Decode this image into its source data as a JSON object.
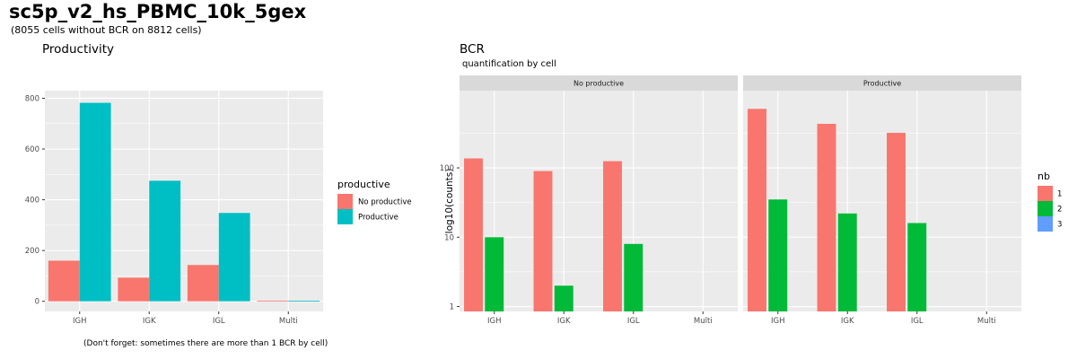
{
  "title": "sc5p_v2_hs_PBMC_10k_5gex",
  "subtitle": "(8055 cells without BCR on 8812 cells)",
  "colors": {
    "panel_bg": "#EBEBEB",
    "grid": "#FFFFFF",
    "strip_bg": "#D9D9D9",
    "text_dark": "#4D4D4D",
    "no_productive": "#F8766D",
    "productive": "#00BFC4",
    "nb1": "#F8766D",
    "nb2": "#00BA38",
    "nb3": "#619CFF"
  },
  "chart_data": [
    {
      "type": "bar",
      "title": "Productivity",
      "categories": [
        "IGH",
        "IGK",
        "IGL",
        "Multi"
      ],
      "series": [
        {
          "name": "No productive",
          "values": [
            160,
            93,
            143,
            2
          ]
        },
        {
          "name": "Productive",
          "values": [
            782,
            475,
            348,
            2
          ]
        }
      ],
      "yticks": [
        0,
        200,
        400,
        600,
        800
      ],
      "ylim": [
        -40,
        830
      ],
      "xlabel": "",
      "ylabel": "",
      "grid": true,
      "legend": {
        "title": "productive",
        "position": "right"
      },
      "footnote": "(Don't forget: sometimes there are more than 1  BCR  by cell)"
    },
    {
      "type": "bar",
      "title": "BCR",
      "subtitle": " quantification by cell",
      "scale": "log10",
      "ylabel": "log10(counts)",
      "xlabel": "",
      "categories": [
        "IGH",
        "IGK",
        "IGL",
        "Multi"
      ],
      "yticks": [
        1,
        10,
        100
      ],
      "ytick_labels": [
        "1",
        "10",
        "100"
      ],
      "ylim": [
        0.85,
        1300
      ],
      "grid": true,
      "legend": {
        "title": "nb",
        "position": "right",
        "labels": [
          "1",
          "2",
          "3"
        ]
      },
      "facets": [
        {
          "label": "No productive",
          "series": [
            {
              "name": "1",
              "values": [
                137,
                90,
                125,
                null
              ]
            },
            {
              "name": "2",
              "values": [
                10,
                2,
                8,
                null
              ]
            },
            {
              "name": "3",
              "values": [
                null,
                null,
                null,
                null
              ]
            }
          ]
        },
        {
          "label": "Productive",
          "series": [
            {
              "name": "1",
              "values": [
                710,
                432,
                320,
                null
              ]
            },
            {
              "name": "2",
              "values": [
                35,
                22,
                16,
                null
              ]
            },
            {
              "name": "3",
              "values": [
                null,
                null,
                null,
                null
              ]
            }
          ]
        }
      ]
    }
  ]
}
